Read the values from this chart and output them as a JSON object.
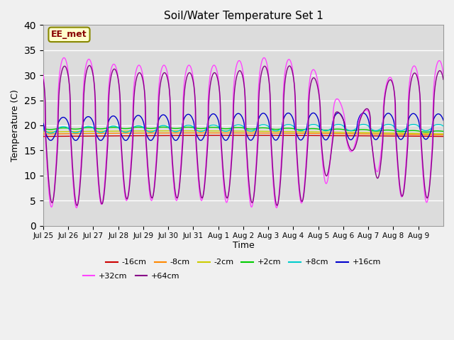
{
  "title": "Soil/Water Temperature Set 1",
  "xlabel": "Time",
  "ylabel": "Temperature (C)",
  "annotation": "EE_met",
  "ylim": [
    0,
    40
  ],
  "yticks": [
    0,
    5,
    10,
    15,
    20,
    25,
    30,
    35,
    40
  ],
  "x_labels": [
    "Jul 25",
    "Jul 26",
    "Jul 27",
    "Jul 28",
    "Jul 29",
    "Jul 30",
    "Jul 31",
    "Aug 1",
    "Aug 2",
    "Aug 3",
    "Aug 4",
    "Aug 5",
    "Aug 6",
    "Aug 7",
    "Aug 8",
    "Aug 9"
  ],
  "series_order": [
    "-16cm",
    "-8cm",
    "-2cm",
    "+2cm",
    "+8cm",
    "+16cm",
    "+32cm",
    "+64cm"
  ],
  "series": {
    "-16cm": {
      "color": "#cc0000"
    },
    "-8cm": {
      "color": "#ff8800"
    },
    "-2cm": {
      "color": "#cccc00"
    },
    "+2cm": {
      "color": "#00cc00"
    },
    "+8cm": {
      "color": "#00cccc"
    },
    "+16cm": {
      "color": "#0000cc"
    },
    "+32cm": {
      "color": "#ff44ff"
    },
    "+64cm": {
      "color": "#880088"
    }
  },
  "fig_bg": "#f0f0f0",
  "plot_bg": "#dcdcdc",
  "grid_color": "#ffffff",
  "legend_ncol_row1": 6,
  "legend_ncol_row2": 2
}
